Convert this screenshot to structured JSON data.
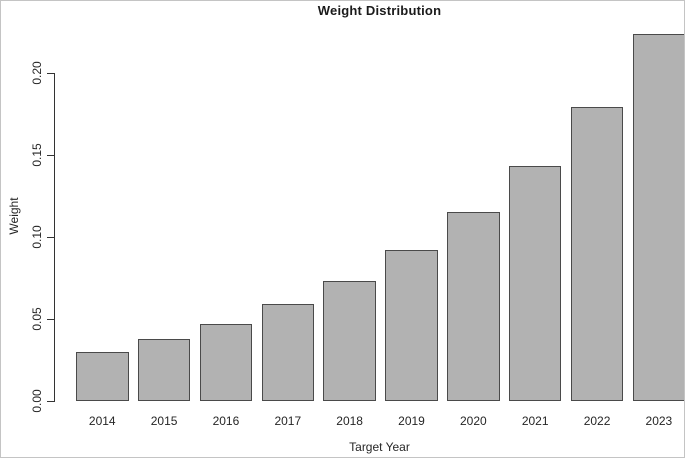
{
  "title": "Weight Distribution",
  "colors": {
    "bar_fill": "#b2b2b2",
    "bar_border": "#4a4a4a",
    "axis": "#333333",
    "text": "#262626"
  },
  "chart_data": {
    "type": "bar",
    "title": "Weight Distribution",
    "xlabel": "Target Year",
    "ylabel": "Weight",
    "categories": [
      "2014",
      "2015",
      "2016",
      "2017",
      "2018",
      "2019",
      "2020",
      "2021",
      "2022",
      "2023"
    ],
    "values": [
      0.03,
      0.038,
      0.047,
      0.059,
      0.073,
      0.092,
      0.115,
      0.143,
      0.179,
      0.224
    ],
    "yticks": [
      0.0,
      0.05,
      0.1,
      0.15,
      0.2
    ],
    "ytick_labels": [
      "0.00",
      "0.05",
      "0.10",
      "0.15",
      "0.20"
    ],
    "ylim": [
      0,
      0.2267
    ],
    "grid": false,
    "legend": null,
    "bar_color": "#b2b2b2",
    "bar_border_color": "#4a4a4a"
  }
}
